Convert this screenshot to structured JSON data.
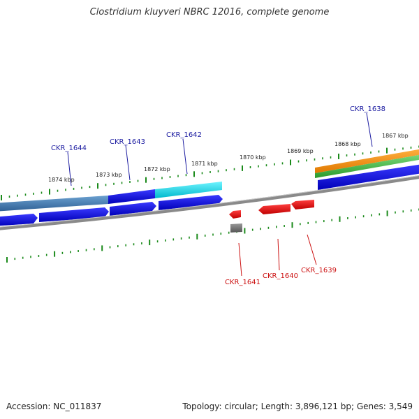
{
  "title": "Clostridium kluyveri NBRC 12016, complete genome",
  "footer": {
    "accession": "Accession: NC_011837",
    "summary": "Topology: circular; Length: 3,896,121 bp; Genes: 3,549"
  },
  "colors": {
    "background": "#ffffff",
    "backbone": "#8a8a8a",
    "tick_marks": "#1a8a1a",
    "forward_gene": "#1010e0",
    "reverse_gene": "#e01010",
    "highlight_cyan": "#00d8e8",
    "steel_blue": "#4682b4",
    "orange_track": "#f08c00",
    "green_track": "#3cb43c",
    "gray_gene": "#777777",
    "forward_label": "#1a1aa0",
    "reverse_label": "#cc1111"
  },
  "scale": {
    "unit": "kbp",
    "labels": [
      "1874 kbp",
      "1873 kbp",
      "1872 kbp",
      "1871 kbp",
      "1870 kbp",
      "1869 kbp",
      "1868 kbp",
      "1867 kbp"
    ]
  },
  "genes": {
    "forward": [
      "CKR_1644",
      "CKR_1643",
      "CKR_1642",
      "CKR_1638"
    ],
    "reverse": [
      "CKR_1641",
      "CKR_1640",
      "CKR_1639"
    ]
  }
}
